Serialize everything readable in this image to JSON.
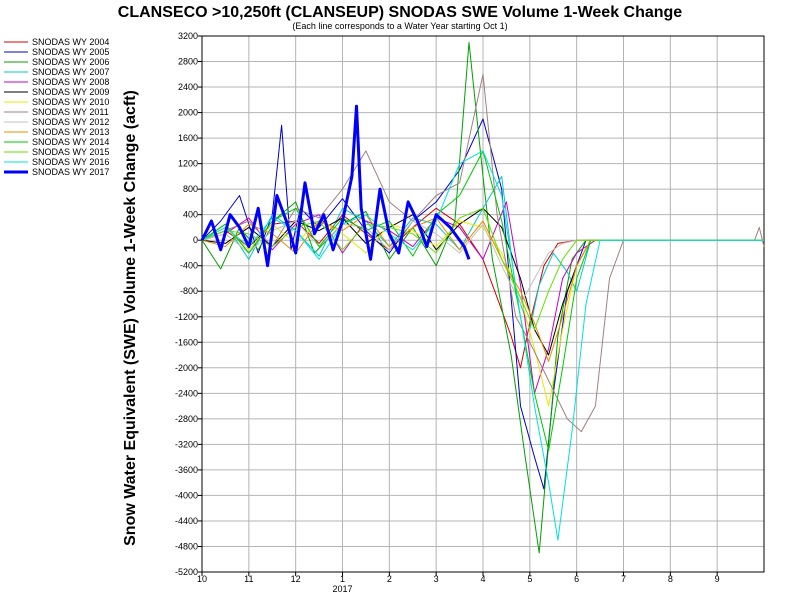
{
  "chart_data": {
    "type": "line",
    "title": "CLANSECO >10,250ft (CLANSEUP) SNODAS SWE Volume 1-Week Change",
    "subtitle": "(Each line corresponds to a Water Year starting Oct 1)",
    "ylabel": "Snow Water Equivalent (SWE) Volume 1-Week Change (acft)",
    "xlabel": "",
    "ylim": [
      -5200,
      3200
    ],
    "yticks": [
      3200,
      2800,
      2400,
      2000,
      1600,
      1200,
      800,
      400,
      0,
      -400,
      -800,
      -1200,
      -1600,
      -2000,
      -2400,
      -2800,
      -3200,
      -3600,
      -4000,
      -4400,
      -4800,
      -5200
    ],
    "xlim": [
      0,
      12
    ],
    "xticks": [
      {
        "pos": 0,
        "label": "10"
      },
      {
        "pos": 1,
        "label": "11"
      },
      {
        "pos": 2,
        "label": "12"
      },
      {
        "pos": 3,
        "label": "1"
      },
      {
        "pos": 4,
        "label": "2"
      },
      {
        "pos": 5,
        "label": "3"
      },
      {
        "pos": 6,
        "label": "4"
      },
      {
        "pos": 7,
        "label": "5"
      },
      {
        "pos": 8,
        "label": "6"
      },
      {
        "pos": 9,
        "label": "7"
      },
      {
        "pos": 10,
        "label": "8"
      },
      {
        "pos": 11,
        "label": "9"
      }
    ],
    "xsublabel": {
      "pos": 3,
      "label": "2017"
    },
    "grid": true,
    "legend_position": "left",
    "series": [
      {
        "name": "SNODAS WY 2004",
        "color": "#d40000",
        "width": 1,
        "x": [
          0,
          0.5,
          1,
          1.5,
          2,
          2.5,
          3,
          3.5,
          4,
          4.5,
          5,
          5.5,
          6,
          6.3,
          6.6,
          6.8,
          7,
          7.3,
          7.6,
          8,
          9,
          10,
          11,
          11.8,
          12
        ],
        "y": [
          0,
          150,
          -100,
          250,
          300,
          -50,
          400,
          100,
          -150,
          200,
          500,
          250,
          -300,
          -900,
          -1500,
          -2000,
          -1300,
          -400,
          -50,
          0,
          0,
          0,
          0,
          0,
          0
        ]
      },
      {
        "name": "SNODAS WY 2005",
        "color": "#0000c8",
        "width": 1,
        "x": [
          0,
          0.4,
          0.8,
          1.2,
          1.5,
          1.7,
          1.9,
          2.1,
          2.5,
          3,
          3.5,
          4,
          4.5,
          5,
          5.5,
          6,
          6.4,
          6.8,
          7.1,
          7.3,
          7.5,
          7.8,
          8.2,
          9,
          10,
          11,
          12
        ],
        "y": [
          0,
          300,
          700,
          -200,
          400,
          1800,
          -150,
          500,
          200,
          650,
          150,
          -200,
          300,
          600,
          1100,
          1900,
          800,
          -2600,
          -3400,
          -3900,
          -2400,
          -800,
          0,
          0,
          0,
          0,
          0
        ]
      },
      {
        "name": "SNODAS WY 2006",
        "color": "#00a000",
        "width": 1,
        "x": [
          0,
          0.4,
          0.8,
          1.2,
          1.6,
          2,
          2.4,
          3,
          3.5,
          4,
          4.5,
          5,
          5.4,
          5.7,
          6,
          6.2,
          6.6,
          6.9,
          7.2,
          7.4,
          7.6,
          7.9,
          8.2,
          9,
          10,
          11,
          12
        ],
        "y": [
          0,
          -450,
          200,
          -150,
          350,
          600,
          -200,
          250,
          450,
          -300,
          200,
          -400,
          300,
          3100,
          1000,
          -300,
          -1800,
          -3400,
          -4900,
          -3200,
          -1500,
          -300,
          0,
          0,
          0,
          0,
          0
        ]
      },
      {
        "name": "SNODAS WY 2007",
        "color": "#00c8c8",
        "width": 1,
        "x": [
          0,
          0.5,
          1,
          1.5,
          2,
          2.5,
          3,
          3.5,
          4,
          4.5,
          5,
          5.5,
          6,
          6.4,
          6.7,
          7,
          7.2,
          7.5,
          7.8,
          8,
          8.3,
          9,
          10,
          11,
          12
        ],
        "y": [
          0,
          250,
          -300,
          400,
          150,
          -250,
          500,
          300,
          -100,
          350,
          250,
          -150,
          500,
          1000,
          -800,
          -1400,
          -700,
          -200,
          -500,
          -800,
          0,
          0,
          0,
          0,
          0
        ]
      },
      {
        "name": "SNODAS WY 2008",
        "color": "#c800c8",
        "width": 1,
        "x": [
          0,
          0.5,
          1,
          1.5,
          2,
          2.5,
          3,
          3.5,
          4,
          4.5,
          5,
          5.5,
          6,
          6.5,
          6.8,
          7.1,
          7.4,
          7.7,
          8,
          8.4,
          9,
          10,
          11,
          12
        ],
        "y": [
          0,
          100,
          350,
          -150,
          250,
          400,
          -200,
          300,
          150,
          -100,
          350,
          200,
          -300,
          600,
          -700,
          -2400,
          -1700,
          -600,
          -200,
          0,
          0,
          0,
          0,
          0
        ]
      },
      {
        "name": "SNODAS WY 2009",
        "color": "#000000",
        "width": 1,
        "x": [
          0,
          0.5,
          1,
          1.5,
          2,
          2.5,
          3,
          3.5,
          4,
          4.5,
          5,
          5.5,
          6,
          6.4,
          6.8,
          7.1,
          7.4,
          7.7,
          8,
          8.3,
          9,
          10,
          11,
          12
        ],
        "y": [
          0,
          -50,
          200,
          -100,
          300,
          150,
          350,
          -50,
          200,
          400,
          -150,
          250,
          500,
          200,
          -600,
          -1400,
          -1800,
          -1000,
          -400,
          0,
          0,
          0,
          0,
          0
        ]
      },
      {
        "name": "SNODAS WY 2010",
        "color": "#e8e800",
        "width": 1,
        "x": [
          0,
          0.5,
          1,
          1.5,
          2,
          2.5,
          3,
          3.5,
          4,
          4.5,
          5,
          5.5,
          6,
          6.4,
          6.8,
          7.1,
          7.4,
          7.7,
          8,
          8.3,
          9,
          10,
          11,
          12
        ],
        "y": [
          0,
          200,
          -150,
          250,
          -50,
          300,
          100,
          -200,
          250,
          150,
          -100,
          300,
          200,
          -200,
          -900,
          -1700,
          -2600,
          -1400,
          -400,
          0,
          0,
          0,
          0,
          0
        ]
      },
      {
        "name": "SNODAS WY 2011",
        "color": "#a08080",
        "width": 1,
        "x": [
          0,
          0.5,
          1,
          1.5,
          2,
          2.5,
          3,
          3.5,
          4,
          4.5,
          5,
          5.5,
          6,
          6.3,
          6.7,
          7,
          7.4,
          7.8,
          8.1,
          8.4,
          8.7,
          9,
          10,
          11,
          11.8,
          11.9,
          12
        ],
        "y": [
          0,
          150,
          300,
          -100,
          500,
          350,
          800,
          1400,
          600,
          300,
          700,
          900,
          2600,
          400,
          -1200,
          -1600,
          -2200,
          -2800,
          -3000,
          -2600,
          -600,
          0,
          0,
          0,
          0,
          200,
          -100
        ]
      },
      {
        "name": "SNODAS WY 2012",
        "color": "#c0c0c0",
        "width": 1,
        "x": [
          0,
          0.5,
          1,
          1.5,
          2,
          2.5,
          3,
          3.5,
          4,
          4.5,
          5,
          5.5,
          6,
          6.4,
          6.8,
          7.1,
          7.4,
          7.7,
          8,
          8.3,
          9,
          10,
          11,
          12
        ],
        "y": [
          0,
          100,
          -200,
          150,
          300,
          -100,
          250,
          200,
          -150,
          300,
          100,
          -200,
          250,
          -400,
          -1000,
          -600,
          -200,
          -50,
          0,
          0,
          0,
          0,
          0,
          0
        ]
      },
      {
        "name": "SNODAS WY 2013",
        "color": "#e88c00",
        "width": 1,
        "x": [
          0,
          0.5,
          1,
          1.5,
          2,
          2.5,
          3,
          3.5,
          4,
          4.5,
          5,
          5.5,
          6,
          6.4,
          6.8,
          7.1,
          7.4,
          7.7,
          8,
          8.3,
          9,
          10,
          11,
          12
        ],
        "y": [
          0,
          -100,
          250,
          100,
          -200,
          300,
          150,
          400,
          -100,
          200,
          350,
          -150,
          300,
          -300,
          -800,
          -1300,
          -1900,
          -1200,
          -400,
          0,
          0,
          0,
          0,
          0
        ]
      },
      {
        "name": "SNODAS WY 2014",
        "color": "#00c800",
        "width": 1,
        "x": [
          0,
          0.5,
          1,
          1.5,
          2,
          2.5,
          3,
          3.5,
          4,
          4.5,
          5,
          5.5,
          6,
          6.4,
          6.8,
          7.1,
          7.4,
          7.7,
          8,
          8.3,
          9,
          10,
          11,
          12
        ],
        "y": [
          0,
          250,
          -200,
          300,
          500,
          -100,
          350,
          150,
          300,
          -250,
          400,
          700,
          1400,
          300,
          -1200,
          -2400,
          -3300,
          -2000,
          -600,
          0,
          0,
          0,
          0,
          0
        ]
      },
      {
        "name": "SNODAS WY 2015",
        "color": "#60e000",
        "width": 1,
        "x": [
          0,
          0.5,
          1,
          1.5,
          2,
          2.5,
          3,
          3.5,
          4,
          4.5,
          5,
          5.5,
          6,
          6.4,
          6.8,
          7.1,
          7.4,
          7.7,
          8,
          8.3,
          9,
          10,
          11,
          12
        ],
        "y": [
          0,
          150,
          100,
          -100,
          200,
          300,
          -150,
          250,
          200,
          100,
          -200,
          350,
          500,
          -300,
          -900,
          -1400,
          -800,
          -300,
          0,
          0,
          0,
          0,
          0,
          0
        ]
      },
      {
        "name": "SNODAS WY 2016",
        "color": "#00e0e0",
        "width": 1,
        "x": [
          0,
          0.5,
          1,
          1.5,
          2,
          2.5,
          3,
          3.5,
          4,
          4.5,
          5,
          5.5,
          6,
          6.4,
          6.8,
          7.1,
          7.4,
          7.6,
          7.9,
          8.2,
          8.5,
          9,
          10,
          11,
          12
        ],
        "y": [
          0,
          200,
          -100,
          350,
          150,
          -300,
          250,
          400,
          100,
          -150,
          300,
          1200,
          1400,
          700,
          -1200,
          -2600,
          -3800,
          -4700,
          -3000,
          -1000,
          0,
          0,
          0,
          0,
          0
        ]
      },
      {
        "name": "SNODAS WY 2017",
        "color": "#0000ff",
        "width": 3,
        "x": [
          0,
          0.2,
          0.4,
          0.6,
          0.8,
          1,
          1.2,
          1.4,
          1.6,
          1.8,
          2,
          2.2,
          2.4,
          2.6,
          2.8,
          3,
          3.2,
          3.3,
          3.4,
          3.6,
          3.8,
          4,
          4.2,
          4.4,
          4.6,
          4.8,
          5,
          5.3,
          5.6,
          5.7
        ],
        "y": [
          0,
          300,
          -150,
          400,
          200,
          -100,
          500,
          -400,
          700,
          300,
          -200,
          900,
          100,
          400,
          -150,
          300,
          1000,
          2100,
          500,
          -300,
          800,
          100,
          -200,
          600,
          300,
          -100,
          400,
          200,
          -100,
          -300
        ]
      }
    ]
  }
}
